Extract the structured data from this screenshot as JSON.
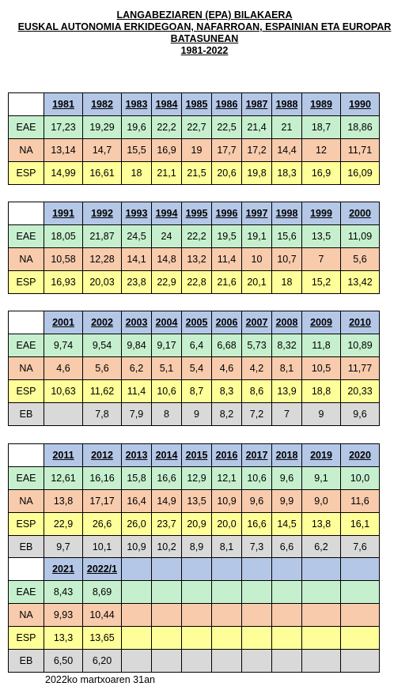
{
  "title": {
    "line1": "LANGABEZIAREN (EPA) BILAKAERA",
    "line2": "EUSKAL AUTONOMIA ERKIDEGOAN, NAFARROAN, ESPAINIAN ETA EUROPAR",
    "line3": "BATASUNEAN",
    "line4": "1981-2022"
  },
  "row_labels": {
    "eae": "EAE",
    "na": "NA",
    "esp": "ESP",
    "eb": "EB"
  },
  "tables": [
    {
      "years": [
        "1981",
        "1982",
        "1983",
        "1984",
        "1985",
        "1986",
        "1987",
        "1988",
        "1989",
        "1990"
      ],
      "eae": [
        "17,23",
        "19,29",
        "19,6",
        "22,2",
        "22,7",
        "22,5",
        "21,4",
        "21",
        "18,7",
        "18,86"
      ],
      "na": [
        "13,14",
        "14,7",
        "15,5",
        "16,9",
        "19",
        "17,7",
        "17,2",
        "14,4",
        "12",
        "11,71"
      ],
      "esp": [
        "14,99",
        "16,61",
        "18",
        "21,1",
        "21,5",
        "20,6",
        "19,8",
        "18,3",
        "16,9",
        "16,09"
      ]
    },
    {
      "years": [
        "1991",
        "1992",
        "1993",
        "1994",
        "1995",
        "1996",
        "1997",
        "1998",
        "1999",
        "2000"
      ],
      "eae": [
        "18,05",
        "21,87",
        "24,5",
        "24",
        "22,2",
        "19,5",
        "19,1",
        "15,6",
        "13,5",
        "11,09"
      ],
      "na": [
        "10,58",
        "12,28",
        "14,1",
        "14,8",
        "13,2",
        "11,4",
        "10",
        "10,7",
        "7",
        "5,6"
      ],
      "esp": [
        "16,93",
        "20,03",
        "23,8",
        "22,9",
        "22,8",
        "21,6",
        "20,1",
        "18",
        "15,2",
        "13,42"
      ]
    },
    {
      "years": [
        "2001",
        "2002",
        "2003",
        "2004",
        "2005",
        "2006",
        "2007",
        "2008",
        "2009",
        "2010"
      ],
      "eae": [
        "9,74",
        "9,54",
        "9,84",
        "9,17",
        "6,4",
        "6,68",
        "5,73",
        "8,32",
        "11,8",
        "10,89"
      ],
      "na": [
        "4,6",
        "5,6",
        "6,2",
        "5,1",
        "5,4",
        "4,6",
        "4,2",
        "8,1",
        "10,5",
        "11,77"
      ],
      "esp": [
        "10,63",
        "11,62",
        "11,4",
        "10,6",
        "8,7",
        "8,3",
        "8,6",
        "13,9",
        "18,8",
        "20,33"
      ],
      "eb": [
        "",
        "7,8",
        "7,9",
        "8",
        "9",
        "8,2",
        "7,2",
        "7",
        "9",
        "9,6"
      ]
    },
    {
      "years": [
        "2011",
        "2012",
        "2013",
        "2014",
        "2015",
        "2016",
        "2017",
        "2018",
        "2019",
        "2020"
      ],
      "eae": [
        "12,61",
        "16,16",
        "15,8",
        "16,6",
        "12,9",
        "12,1",
        "10,6",
        "9,6",
        "9,1",
        "10,0"
      ],
      "na": [
        "13,8",
        "17,17",
        "16,4",
        "14,9",
        "13,5",
        "10,9",
        "9,6",
        "9,9",
        "9,0",
        "11,6"
      ],
      "esp": [
        "22,9",
        "26,6",
        "26,0",
        "23,7",
        "20,9",
        "20,0",
        "16,6",
        "14,5",
        "13,8",
        "16,1"
      ],
      "eb": [
        "9,7",
        "10,1",
        "10,9",
        "10,2",
        "8,9",
        "8,1",
        "7,3",
        "6,6",
        "6,2",
        "7,6"
      ]
    },
    {
      "years": [
        "2021",
        "2022/1",
        "",
        "",
        "",
        "",
        "",
        "",
        "",
        ""
      ],
      "eae": [
        "8,43",
        "8,69",
        "",
        "",
        "",
        "",
        "",
        "",
        "",
        ""
      ],
      "na": [
        "9,93",
        "10,44",
        "",
        "",
        "",
        "",
        "",
        "",
        "",
        ""
      ],
      "esp": [
        "13,3",
        "13,65",
        "",
        "",
        "",
        "",
        "",
        "",
        "",
        ""
      ],
      "eb": [
        "6,50",
        "6,20",
        "",
        "",
        "",
        "",
        "",
        "",
        "",
        ""
      ]
    }
  ],
  "footnote": "2022ko martxoaren 31an"
}
